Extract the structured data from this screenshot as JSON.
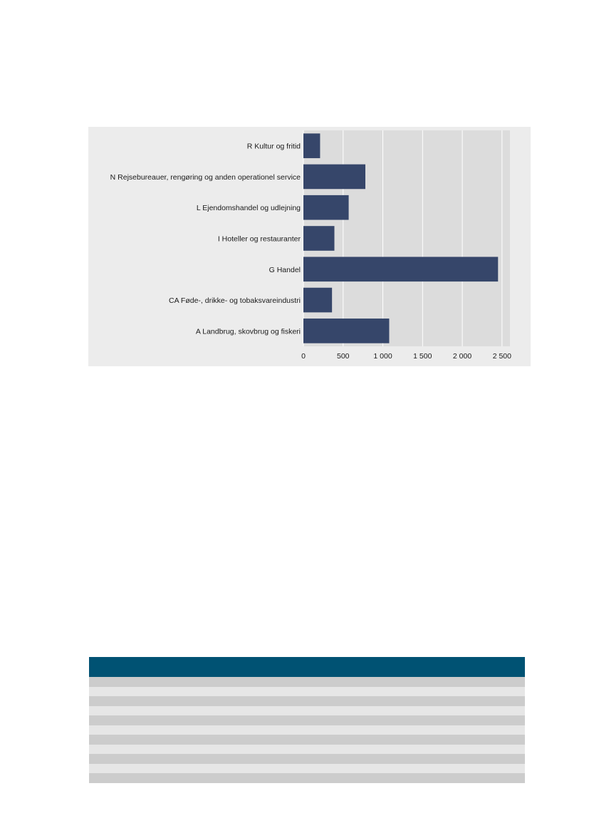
{
  "chart_data": {
    "type": "bar",
    "orientation": "horizontal",
    "title": "",
    "xlabel": "",
    "ylabel": "",
    "categories": [
      "R Kultur og fritid",
      "N Rejsebureauer, rengøring og anden operationel service",
      "L Ejendomshandel og udlejning",
      "I Hoteller og restauranter",
      "G Handel",
      "CA Føde-, drikke- og tobaksvareindustri",
      "A Landbrug, skovbrug og fiskeri"
    ],
    "values": [
      210,
      780,
      570,
      390,
      2450,
      360,
      1080
    ],
    "xlim": [
      0,
      2600
    ],
    "xticks": [
      0,
      500,
      1000,
      1500,
      2000,
      2500
    ],
    "xtick_labels": [
      "0",
      "500",
      "1 000",
      "1 500",
      "2 000",
      "2 500"
    ],
    "grid": true,
    "legend": "none",
    "colors": {
      "bar": "#36466a",
      "plot_background": "#dcdcdc",
      "panel_background": "#ececec",
      "grid": "#ffffff"
    }
  },
  "table": {
    "header_color": "#005273",
    "row_colors": [
      "#cccccc",
      "#e6e6e6"
    ],
    "row_count": 11
  }
}
